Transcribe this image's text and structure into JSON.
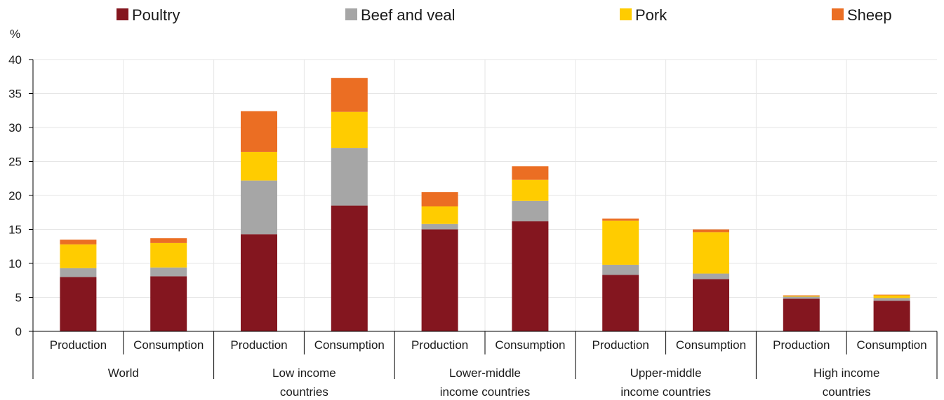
{
  "chart_data": {
    "type": "bar",
    "stacked": true,
    "ylabel": "%",
    "ylim": [
      0,
      40
    ],
    "yticks": [
      0,
      5,
      10,
      15,
      20,
      25,
      30,
      35,
      40
    ],
    "legend_position": "top",
    "grid": true,
    "groups": [
      {
        "lines": [
          "World"
        ],
        "categories": [
          "Production",
          "Consumption"
        ]
      },
      {
        "lines": [
          "Low income",
          "countries"
        ],
        "categories": [
          "Production",
          "Consumption"
        ]
      },
      {
        "lines": [
          "Lower-middle",
          "income countries"
        ],
        "categories": [
          "Production",
          "Consumption"
        ]
      },
      {
        "lines": [
          "Upper-middle",
          "income countries"
        ],
        "categories": [
          "Production",
          "Consumption"
        ]
      },
      {
        "lines": [
          "High income",
          "countries"
        ],
        "categories": [
          "Production",
          "Consumption"
        ]
      }
    ],
    "series": [
      {
        "name": "Poultry",
        "color": "#84161f",
        "values": [
          8.0,
          8.1,
          14.3,
          18.5,
          15.0,
          16.2,
          8.3,
          7.7,
          4.8,
          4.5
        ]
      },
      {
        "name": "Beef and veal",
        "color": "#a6a6a6",
        "values": [
          1.3,
          1.3,
          7.9,
          8.5,
          0.8,
          3.0,
          1.5,
          0.8,
          0.3,
          0.4
        ]
      },
      {
        "name": "Pork",
        "color": "#ffcc00",
        "values": [
          3.5,
          3.6,
          4.2,
          5.3,
          2.6,
          3.1,
          6.5,
          6.1,
          0.1,
          0.4
        ]
      },
      {
        "name": "Sheep",
        "color": "#eb6e23",
        "values": [
          0.7,
          0.7,
          6.0,
          5.0,
          2.1,
          2.0,
          0.3,
          0.4,
          0.1,
          0.1
        ]
      }
    ]
  }
}
